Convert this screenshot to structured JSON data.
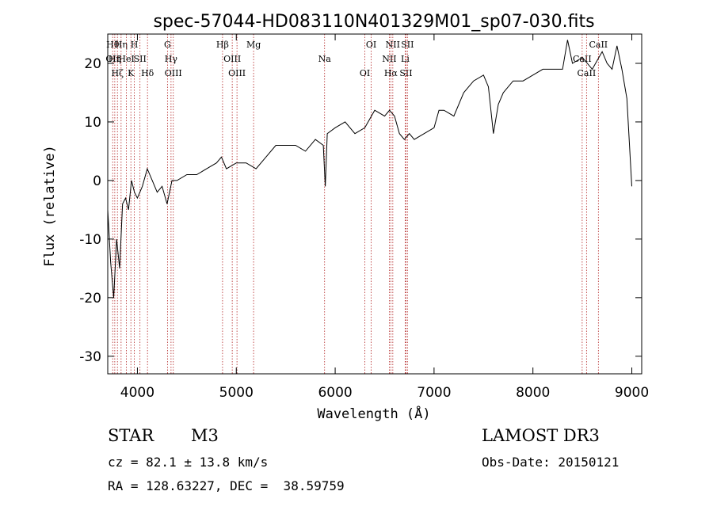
{
  "chart_data": {
    "type": "line",
    "title": "spec-57044-HD083110N401329M01_sp07-030.fits",
    "xlabel": "Wavelength (Å)",
    "ylabel": "Flux (relative)",
    "xlim": [
      3700,
      9100
    ],
    "ylim": [
      -33,
      25
    ],
    "xticks": [
      4000,
      5000,
      6000,
      7000,
      8000,
      9000
    ],
    "yticks": [
      -30,
      -20,
      -10,
      0,
      10,
      20
    ],
    "grid": false,
    "line_color": "#000000",
    "marker_color": "#b22222",
    "series": [
      {
        "name": "spectrum",
        "x": [
          3700,
          3730,
          3760,
          3790,
          3820,
          3850,
          3880,
          3910,
          3940,
          3970,
          4000,
          4050,
          4100,
          4150,
          4200,
          4250,
          4300,
          4350,
          4400,
          4500,
          4600,
          4700,
          4800,
          4850,
          4900,
          5000,
          5100,
          5200,
          5300,
          5400,
          5500,
          5600,
          5700,
          5800,
          5880,
          5900,
          5920,
          6000,
          6100,
          6200,
          6300,
          6400,
          6500,
          6550,
          6600,
          6650,
          6700,
          6750,
          6800,
          6900,
          7000,
          7050,
          7100,
          7200,
          7300,
          7400,
          7500,
          7550,
          7600,
          7650,
          7700,
          7800,
          7900,
          8000,
          8100,
          8200,
          8300,
          8350,
          8400,
          8500,
          8600,
          8700,
          8750,
          8800,
          8850,
          8900,
          8950,
          9000
        ],
        "y": [
          -5,
          -14,
          -20,
          -10,
          -15,
          -4,
          -3,
          -5,
          0,
          -2,
          -3,
          -1,
          2,
          0,
          -2,
          -1,
          -4,
          0,
          0,
          1,
          1,
          2,
          3,
          4,
          2,
          3,
          3,
          2,
          4,
          6,
          6,
          6,
          5,
          7,
          6,
          -1,
          8,
          9,
          10,
          8,
          9,
          12,
          11,
          12,
          11,
          8,
          7,
          8,
          7,
          8,
          9,
          12,
          12,
          11,
          15,
          17,
          18,
          16,
          8,
          13,
          15,
          17,
          17,
          18,
          19,
          19,
          19,
          24,
          20,
          21,
          19,
          22,
          20,
          19,
          23,
          19,
          14,
          -1
        ]
      }
    ],
    "lines": [
      {
        "wl": 3750,
        "labels": [
          "Hθ",
          "OII"
        ]
      },
      {
        "wl": 3771,
        "labels": [
          "Hη"
        ]
      },
      {
        "wl": 3798,
        "labels": [
          "Hζ"
        ]
      },
      {
        "wl": 3835,
        "labels": [
          "Hη"
        ]
      },
      {
        "wl": 3889,
        "labels": [
          "HeI"
        ]
      },
      {
        "wl": 3934,
        "labels": [
          "K"
        ]
      },
      {
        "wl": 3969,
        "labels": [
          "H"
        ]
      },
      {
        "wl": 4026,
        "labels": [
          "SII"
        ]
      },
      {
        "wl": 4102,
        "labels": [
          "Hδ"
        ]
      },
      {
        "wl": 4304,
        "labels": [
          "G"
        ]
      },
      {
        "wl": 4340,
        "labels": [
          "Hγ"
        ]
      },
      {
        "wl": 4363,
        "labels": [
          "OIII"
        ]
      },
      {
        "wl": 4861,
        "labels": [
          "Hβ"
        ]
      },
      {
        "wl": 4959,
        "labels": [
          "OIII"
        ]
      },
      {
        "wl": 5007,
        "labels": [
          "OIII"
        ]
      },
      {
        "wl": 5175,
        "labels": [
          "Mg"
        ]
      },
      {
        "wl": 5893,
        "labels": [
          "Na"
        ]
      },
      {
        "wl": 6300,
        "labels": [
          "OI"
        ]
      },
      {
        "wl": 6364,
        "labels": [
          "OI"
        ]
      },
      {
        "wl": 6548,
        "labels": [
          "NII"
        ]
      },
      {
        "wl": 6563,
        "labels": [
          "Hα"
        ]
      },
      {
        "wl": 6583,
        "labels": [
          "NII"
        ]
      },
      {
        "wl": 6708,
        "labels": [
          "Li"
        ]
      },
      {
        "wl": 6716,
        "labels": [
          "SII"
        ]
      },
      {
        "wl": 6731,
        "labels": [
          "SII"
        ]
      },
      {
        "wl": 8498,
        "labels": [
          "CaII"
        ]
      },
      {
        "wl": 8542,
        "labels": [
          "CaII"
        ]
      },
      {
        "wl": 8662,
        "labels": [
          "CaII"
        ]
      }
    ]
  },
  "info": {
    "obj_class": "STAR",
    "subclass": "M3",
    "survey": "LAMOST DR3",
    "redshift_text": "cz = 82.1 ± 13.8 km/s",
    "obs_date_text": "Obs-Date: 20150121",
    "coords_text": "RA = 128.63227, DEC =  38.59759"
  }
}
